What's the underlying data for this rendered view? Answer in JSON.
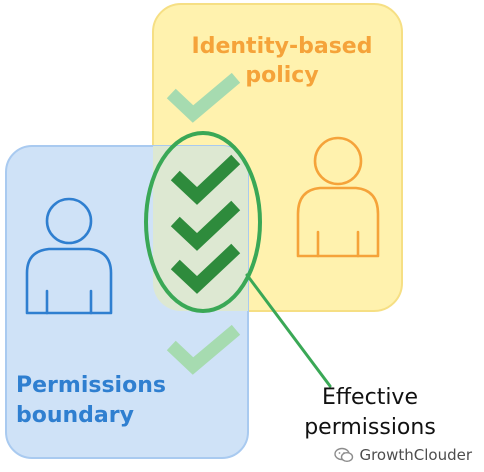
{
  "identity_policy": {
    "title_line1": "Identity-based",
    "title_line2": "policy"
  },
  "permissions_boundary": {
    "title_line1": "Permissions",
    "title_line2": "boundary"
  },
  "effective_permissions": {
    "line1": "Effective",
    "line2": "permissions"
  },
  "watermark": {
    "text": "GrowthClouder"
  },
  "colors": {
    "policy_fill": "#fff2ae",
    "policy_border": "#f6df84",
    "boundary_fill": "#cfe2f7",
    "boundary_border": "#a9caf0",
    "check_dark": "#2e8b3c",
    "check_light": "#a6dbb0",
    "policy_text": "#f5a33a",
    "boundary_text": "#2f7fd0"
  },
  "icons": {
    "policy_user": "user-outline-icon",
    "boundary_user": "user-outline-icon",
    "check": "check-mark-icon"
  }
}
